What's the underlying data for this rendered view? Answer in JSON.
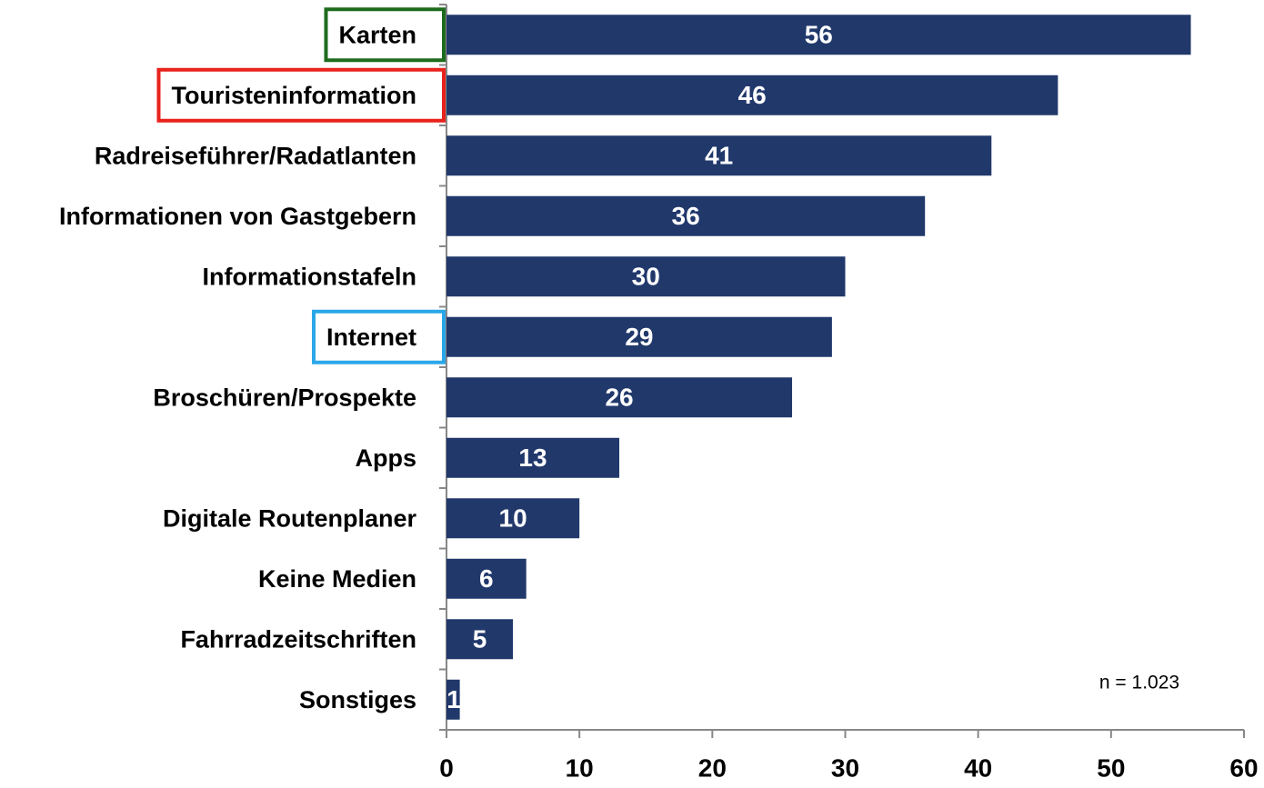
{
  "chart_data": {
    "type": "bar",
    "orientation": "horizontal",
    "categories": [
      "Karten",
      "Touristeninformation",
      "Radreiseführer/Radatlanten",
      "Informationen von Gastgebern",
      "Informationstafeln",
      "Internet",
      "Broschüren/Prospekte",
      "Apps",
      "Digitale Routenplaner",
      "Keine Medien",
      "Fahrradzeitschriften",
      "Sonstiges"
    ],
    "values": [
      56,
      46,
      41,
      36,
      30,
      29,
      26,
      13,
      10,
      6,
      5,
      1
    ],
    "color": "#21386b",
    "label_box_colors": [
      "#1d6b1d",
      "#e8221c",
      null,
      null,
      null,
      "#2aa7e8",
      null,
      null,
      null,
      null,
      null,
      null
    ],
    "xlim": [
      0,
      60
    ],
    "xticks": [
      0,
      10,
      20,
      30,
      40,
      50,
      60
    ],
    "annotation": "n = 1.023"
  }
}
